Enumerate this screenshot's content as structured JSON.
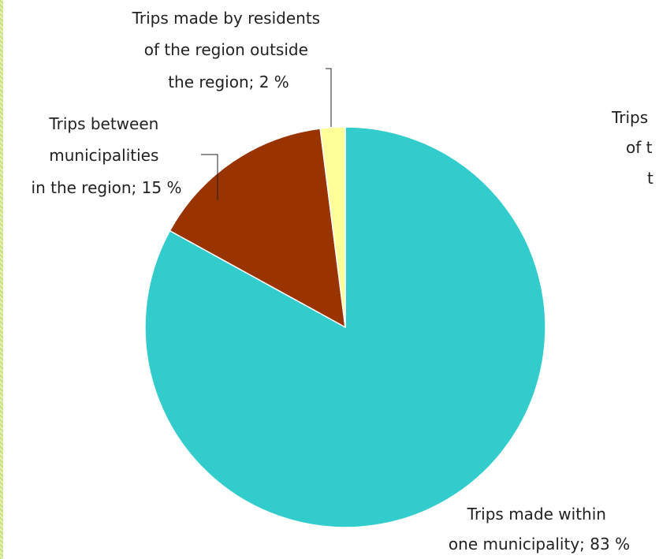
{
  "chart_data": {
    "type": "pie",
    "slices": [
      {
        "lines": [
          "Trips made within",
          "one municipality; 83 %"
        ],
        "value": 83,
        "color": "#33cccc"
      },
      {
        "lines": [
          "Trips between",
          "municipalities",
          "in the region; 15 %"
        ],
        "value": 15,
        "color": "#993300"
      },
      {
        "lines": [
          "Trips made by residents",
          "of the region outside",
          "the region; 2 %"
        ],
        "value": 2,
        "color": "#ffff99"
      }
    ],
    "cut_off_label_lines": [
      "Trips",
      "of t",
      "t"
    ]
  }
}
